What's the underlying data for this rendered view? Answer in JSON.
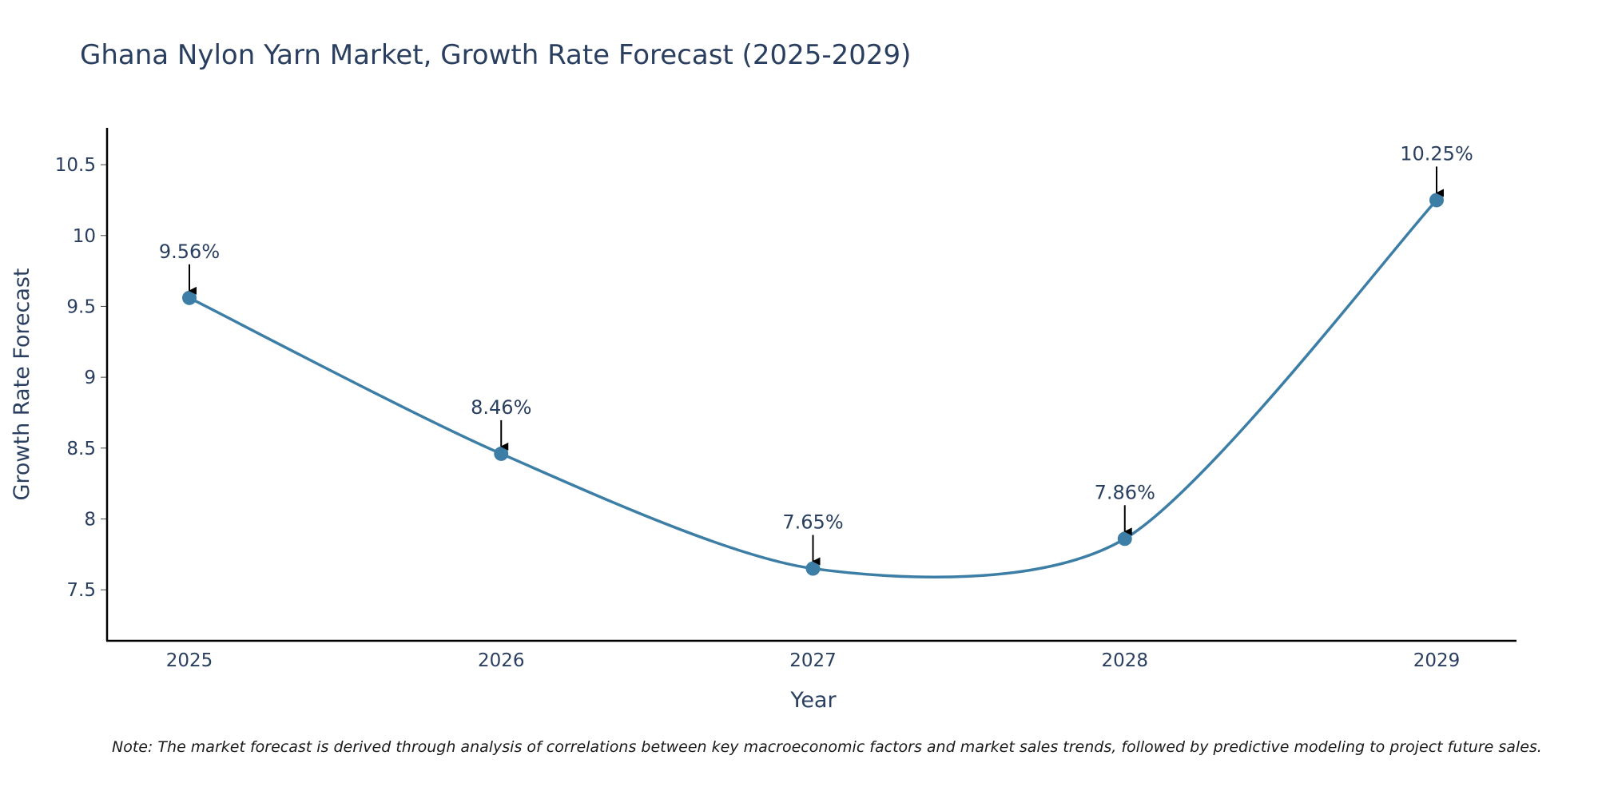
{
  "chart_data": {
    "type": "line",
    "title": "Ghana Nylon Yarn Market, Growth Rate Forecast (2025-2029)",
    "xlabel": "Year",
    "ylabel": "Growth Rate Forecast",
    "x": [
      "2025",
      "2026",
      "2027",
      "2028",
      "2029"
    ],
    "series": [
      {
        "name": "Growth Rate Forecast",
        "values": [
          9.56,
          8.46,
          7.65,
          7.86,
          10.25
        ]
      }
    ],
    "data_labels": [
      "9.56%",
      "8.46%",
      "7.65%",
      "7.86%",
      "10.25%"
    ],
    "y_ticks": [
      7.5,
      8,
      8.5,
      9,
      9.5,
      10,
      10.5
    ],
    "y_tick_labels": [
      "7.5",
      "8",
      "8.5",
      "9",
      "9.5",
      "10",
      "10.5"
    ],
    "ylim": [
      7.14,
      10.76
    ],
    "grid": false,
    "legend": "none",
    "line_color": "#3d7ea6",
    "marker_color": "#3d7ea6",
    "arrow_color": "#000000",
    "note": "Note: The market forecast is derived through analysis of correlations between key macroeconomic factors and market sales trends, followed by predictive modeling to project future sales."
  }
}
